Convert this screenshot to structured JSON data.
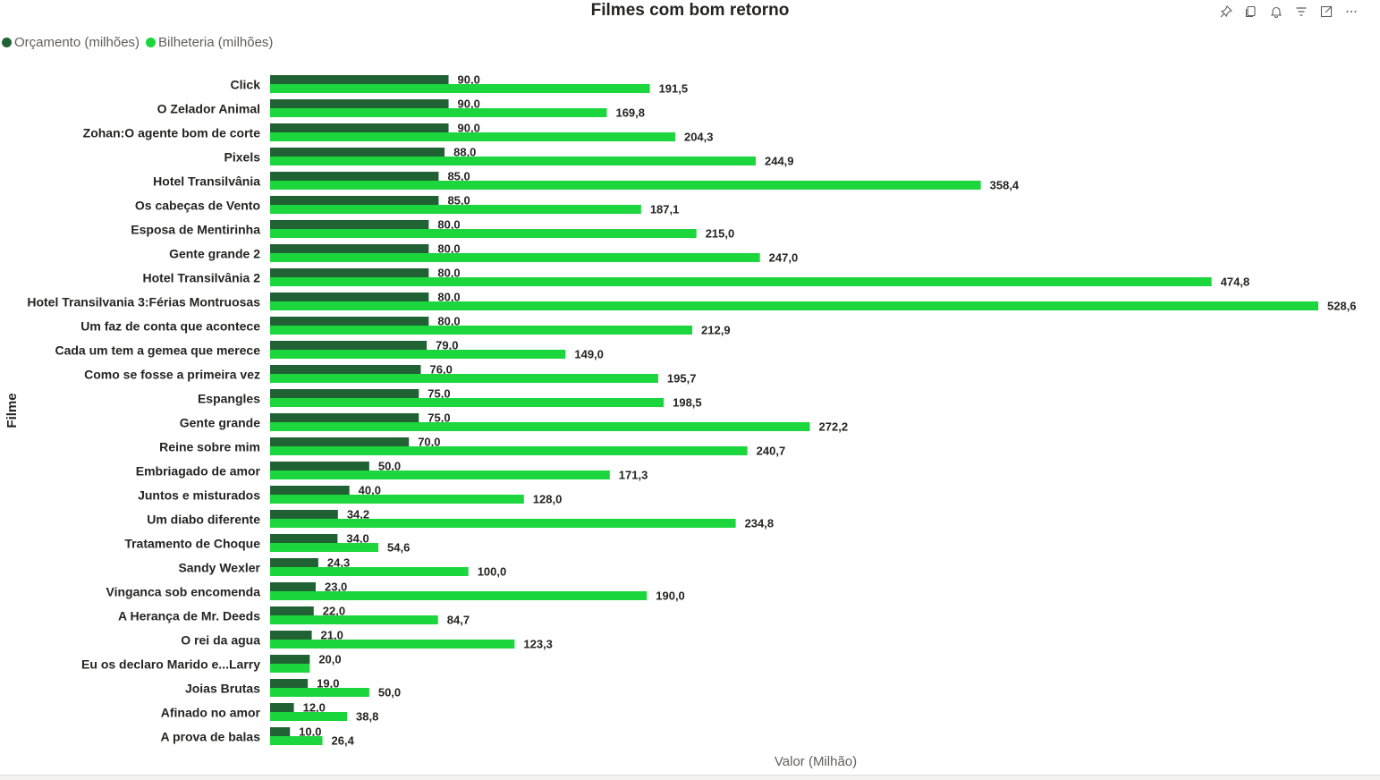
{
  "toolbar": {
    "icons": [
      "pin-icon",
      "copy-icon",
      "bell-icon",
      "filter-icon",
      "focus-mode-icon",
      "more-options-icon"
    ]
  },
  "colors": {
    "series_budget": "#216234",
    "series_boxoffice": "#1bd63c",
    "label_text": "#252423",
    "axis_title": "#605e5c"
  },
  "chart_data": {
    "type": "bar",
    "orientation": "horizontal",
    "title": "Filmes com bom retorno",
    "xlabel": "Valor (Milhão)",
    "ylabel": "Filme",
    "xlim": [
      0,
      528.6
    ],
    "grid": false,
    "legend_position": "top-left",
    "categories": [
      "Click",
      "O Zelador Animal",
      "Zohan:O agente bom de corte",
      "Pixels",
      "Hotel Transilvânia",
      "Os cabeças de Vento",
      "Esposa de Mentirinha",
      "Gente grande 2",
      "Hotel Transilvânia 2",
      "Hotel Transilvania 3:Férias Montruosas",
      "Um faz de conta que acontece",
      "Cada um tem a gemea que merece",
      "Como se fosse a primeira vez",
      "Espangles",
      "Gente grande",
      "Reine sobre mim",
      "Embriagado de amor",
      "Juntos e misturados",
      "Um diabo diferente",
      "Tratamento de Choque",
      "Sandy Wexler",
      "Vinganca sob encomenda",
      "A Herança de Mr. Deeds",
      "O rei da agua",
      "Eu os declaro Marido e...Larry",
      "Joias Brutas",
      "Afinado no amor",
      "A prova de balas"
    ],
    "series": [
      {
        "name": "Orçamento (milhões)",
        "values": [
          90.0,
          90.0,
          90.0,
          88.0,
          85.0,
          85.0,
          80.0,
          80.0,
          80.0,
          80.0,
          80.0,
          79.0,
          76.0,
          75.0,
          75.0,
          70.0,
          50.0,
          40.0,
          34.2,
          34.0,
          24.3,
          23.0,
          22.0,
          21.0,
          20.0,
          19.0,
          12.0,
          10.0
        ],
        "labels": [
          "90,0",
          "90,0",
          "90,0",
          "88,0",
          "85,0",
          "85,0",
          "80,0",
          "80,0",
          "80,0",
          "80,0",
          "80,0",
          "79,0",
          "76,0",
          "75,0",
          "75,0",
          "70,0",
          "50,0",
          "40,0",
          "34,2",
          "34,0",
          "24,3",
          "23,0",
          "22,0",
          "21,0",
          "20,0",
          "19,0",
          "12,0",
          "10,0"
        ]
      },
      {
        "name": "Bilheteria (milhões)",
        "values": [
          191.5,
          169.8,
          204.3,
          244.9,
          358.4,
          187.1,
          215.0,
          247.0,
          474.8,
          528.6,
          212.9,
          149.0,
          195.7,
          198.5,
          272.2,
          240.7,
          171.3,
          128.0,
          234.8,
          54.6,
          100.0,
          190.0,
          84.7,
          123.3,
          20.0,
          50.0,
          38.8,
          26.4
        ],
        "labels": [
          "191,5",
          "169,8",
          "204,3",
          "244,9",
          "358,4",
          "187,1",
          "215,0",
          "247,0",
          "474,8",
          "528,6",
          "212,9",
          "149,0",
          "195,7",
          "198,5",
          "272,2",
          "240,7",
          "171,3",
          "128,0",
          "234,8",
          "54,6",
          "100,0",
          "190,0",
          "84,7",
          "123,3",
          "",
          "50,0",
          "38,8",
          "26,4"
        ]
      }
    ]
  }
}
